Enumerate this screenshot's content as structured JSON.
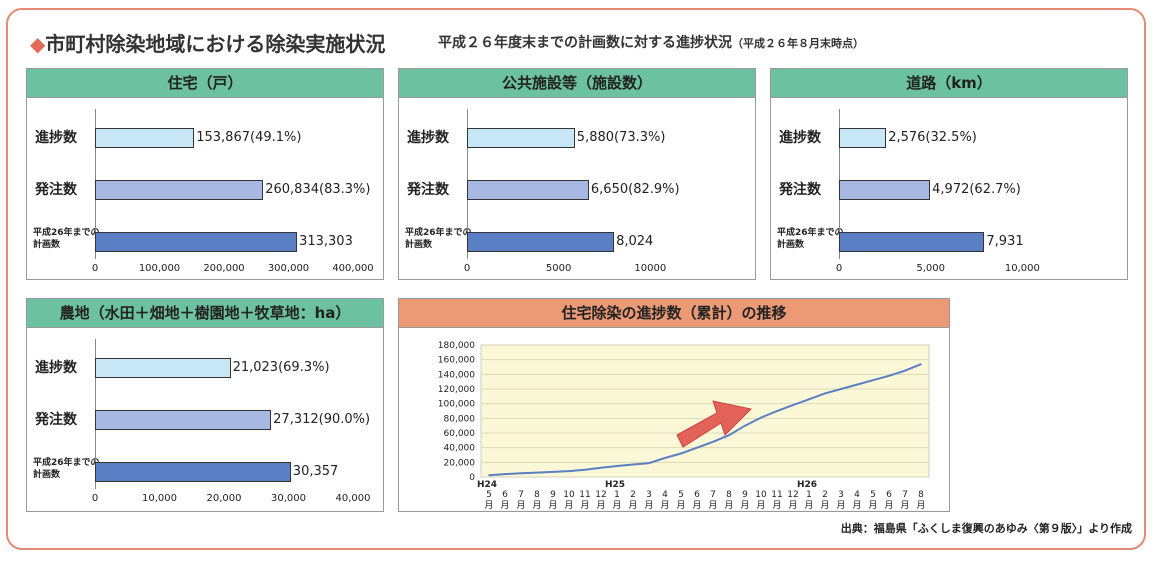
{
  "title": "市町村除染地域における除染実施状況",
  "subtitle": "平成２６年度末までの計画数に対する進捗状況",
  "subtitle_note": "（平成２６年８月末時点）",
  "source": "出典：福島県「ふくしま復興のあゆみ〈第９版〉」より作成",
  "row_labels": [
    "進捗数",
    "発注数",
    "平成26年までの",
    "計画数"
  ],
  "colors": {
    "progress": "#c7e7f6",
    "ordered": "#a7b9e2",
    "planned": "#5b7fc4",
    "line": "#5b7fc4",
    "plotbg": "#fbf8d8",
    "arrow": "#e2625a"
  },
  "chart_data": [
    {
      "type": "bar",
      "title": "住宅（戸）",
      "categories": [
        "進捗数",
        "発注数",
        "平成26年までの計画数"
      ],
      "values": [
        153867,
        260834,
        313303
      ],
      "labels": [
        "153,867(49.1%)",
        "260,834(83.3%)",
        "313,303"
      ],
      "xlim": [
        0,
        400000
      ],
      "ticks": [
        "0",
        "100,000",
        "200,000",
        "300,000",
        "400,000"
      ]
    },
    {
      "type": "bar",
      "title": "公共施設等（施設数）",
      "categories": [
        "進捗数",
        "発注数",
        "平成26年までの計画数"
      ],
      "values": [
        5880,
        6650,
        8024
      ],
      "labels": [
        "5,880(73.3%)",
        "6,650(82.9%)",
        "8,024"
      ],
      "xlim": [
        0,
        12000
      ],
      "ticks": [
        "0",
        "5000",
        "10000"
      ]
    },
    {
      "type": "bar",
      "title": "道路（km）",
      "categories": [
        "進捗数",
        "発注数",
        "平成26年までの計画数"
      ],
      "values": [
        2576,
        4972,
        7931
      ],
      "labels": [
        "2,576(32.5%)",
        "4,972(62.7%)",
        "7,931"
      ],
      "xlim": [
        0,
        12000
      ],
      "ticks": [
        "0",
        "5,000",
        "10,000"
      ]
    },
    {
      "type": "bar",
      "title": "農地（水田＋畑地＋樹園地＋牧草地：ha）",
      "categories": [
        "進捗数",
        "発注数",
        "平成26年までの計画数"
      ],
      "values": [
        21023,
        27312,
        30357
      ],
      "labels": [
        "21,023(69.3%)",
        "27,312(90.0%)",
        "30,357"
      ],
      "xlim": [
        0,
        40000
      ],
      "ticks": [
        "0",
        "10,000",
        "20,000",
        "30,000",
        "40,000"
      ]
    },
    {
      "type": "line",
      "title": "住宅除染の進捗数（累計）の推移",
      "x": [
        "5",
        "6",
        "7",
        "8",
        "9",
        "10",
        "11",
        "12",
        "1",
        "2",
        "3",
        "4",
        "5",
        "6",
        "7",
        "8",
        "9",
        "10",
        "11",
        "12",
        "1",
        "2",
        "3",
        "4",
        "5",
        "6",
        "7",
        "8"
      ],
      "x_unit": "月",
      "year_labels": [
        {
          "label": "H24",
          "index": 0
        },
        {
          "label": "H25",
          "index": 8
        },
        {
          "label": "H26",
          "index": 20
        }
      ],
      "values": [
        2500,
        4000,
        5000,
        6000,
        7000,
        8000,
        10000,
        12500,
        15000,
        17000,
        19000,
        26000,
        32000,
        40000,
        48000,
        57000,
        70000,
        81000,
        90000,
        98000,
        106000,
        114000,
        120000,
        126000,
        132000,
        138000,
        145000,
        153867
      ],
      "ylim": [
        0,
        180000
      ],
      "yticks": [
        "0",
        "20,000",
        "40,000",
        "60,000",
        "80,000",
        "100,000",
        "120,000",
        "140,000",
        "160,000",
        "180,000"
      ]
    }
  ]
}
